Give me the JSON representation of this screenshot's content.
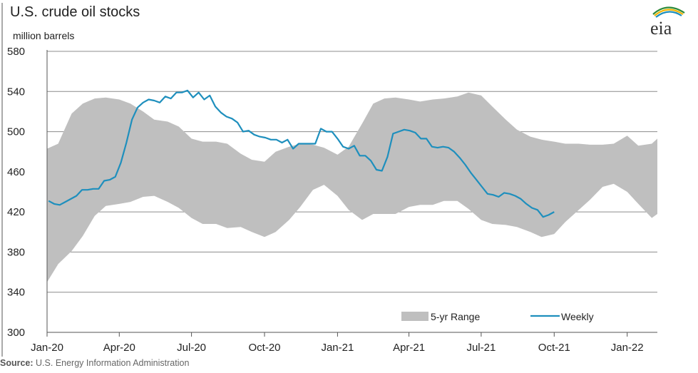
{
  "title": "U.S. crude oil stocks",
  "unit": "million barrels",
  "source_label": "Source:",
  "source_text": "U.S. Energy Information Administration",
  "logo_text": "eia",
  "chart_data": {
    "type": "line",
    "title": "U.S. crude oil stocks",
    "ylabel": "million barrels",
    "ylim": [
      300,
      580
    ],
    "yticks": [
      300,
      340,
      380,
      420,
      460,
      500,
      540,
      580
    ],
    "xlim": [
      "2020-01-01",
      "2022-02-08"
    ],
    "xtick_dates": [
      "2020-01-01",
      "2020-04-01",
      "2020-07-01",
      "2020-10-01",
      "2021-01-01",
      "2021-04-01",
      "2021-07-01",
      "2021-10-01",
      "2022-01-01"
    ],
    "xtick_labels": [
      "Jan-20",
      "Apr-20",
      "Jul-20",
      "Oct-20",
      "Jan-21",
      "Apr-21",
      "Jul-21",
      "Oct-21",
      "Jan-22"
    ],
    "grid": true,
    "legend_position": "bottom-right",
    "series": [
      {
        "name": "5-yr Range",
        "kind": "range-band",
        "color": "#bfbfbf",
        "x": [
          "2020-01-01",
          "2020-01-15",
          "2020-02-01",
          "2020-02-15",
          "2020-03-01",
          "2020-03-15",
          "2020-04-01",
          "2020-04-15",
          "2020-05-01",
          "2020-05-15",
          "2020-06-01",
          "2020-06-15",
          "2020-07-01",
          "2020-07-15",
          "2020-08-01",
          "2020-08-15",
          "2020-09-01",
          "2020-09-15",
          "2020-10-01",
          "2020-10-15",
          "2020-11-01",
          "2020-11-15",
          "2020-12-01",
          "2020-12-15",
          "2021-01-01",
          "2021-01-15",
          "2021-02-01",
          "2021-02-15",
          "2021-03-01",
          "2021-03-15",
          "2021-04-01",
          "2021-04-15",
          "2021-05-01",
          "2021-05-15",
          "2021-06-01",
          "2021-06-15",
          "2021-07-01",
          "2021-07-15",
          "2021-08-01",
          "2021-08-15",
          "2021-09-01",
          "2021-09-15",
          "2021-10-01",
          "2021-10-15",
          "2021-11-01",
          "2021-11-15",
          "2021-12-01",
          "2021-12-15",
          "2022-01-01",
          "2022-01-15",
          "2022-02-01",
          "2022-02-08"
        ],
        "low": [
          350,
          368,
          381,
          396,
          416,
          426,
          428,
          430,
          435,
          436,
          430,
          424,
          414,
          408,
          408,
          404,
          405,
          400,
          395,
          400,
          412,
          425,
          442,
          447,
          436,
          422,
          412,
          418,
          418,
          418,
          425,
          427,
          427,
          431,
          431,
          423,
          412,
          408,
          407,
          405,
          400,
          395,
          398,
          410,
          422,
          432,
          445,
          448,
          440,
          428,
          414,
          418
        ],
        "high": [
          483,
          488,
          518,
          528,
          533,
          534,
          532,
          528,
          520,
          512,
          510,
          505,
          493,
          490,
          490,
          488,
          478,
          472,
          470,
          480,
          485,
          488,
          487,
          484,
          477,
          485,
          508,
          528,
          533,
          534,
          532,
          530,
          532,
          533,
          535,
          539,
          536,
          525,
          512,
          502,
          495,
          492,
          490,
          488,
          488,
          487,
          487,
          488,
          496,
          486,
          488,
          493
        ]
      },
      {
        "name": "Weekly",
        "kind": "line",
        "color": "#1e8fbd",
        "x": [
          "2020-01-03",
          "2020-01-10",
          "2020-01-17",
          "2020-01-24",
          "2020-01-31",
          "2020-02-07",
          "2020-02-14",
          "2020-02-21",
          "2020-02-28",
          "2020-03-06",
          "2020-03-13",
          "2020-03-20",
          "2020-03-27",
          "2020-04-03",
          "2020-04-10",
          "2020-04-17",
          "2020-04-24",
          "2020-05-01",
          "2020-05-08",
          "2020-05-15",
          "2020-05-22",
          "2020-05-29",
          "2020-06-05",
          "2020-06-12",
          "2020-06-19",
          "2020-06-26",
          "2020-07-03",
          "2020-07-10",
          "2020-07-17",
          "2020-07-24",
          "2020-07-31",
          "2020-08-07",
          "2020-08-14",
          "2020-08-21",
          "2020-08-28",
          "2020-09-04",
          "2020-09-11",
          "2020-09-18",
          "2020-09-25",
          "2020-10-02",
          "2020-10-09",
          "2020-10-16",
          "2020-10-23",
          "2020-10-30",
          "2020-11-06",
          "2020-11-13",
          "2020-11-20",
          "2020-11-27",
          "2020-12-04",
          "2020-12-11",
          "2020-12-18",
          "2020-12-25",
          "2021-01-01",
          "2021-01-08",
          "2021-01-15",
          "2021-01-22",
          "2021-01-29",
          "2021-02-05",
          "2021-02-12",
          "2021-02-19",
          "2021-02-26",
          "2021-03-05",
          "2021-03-12",
          "2021-03-19",
          "2021-03-26",
          "2021-04-02",
          "2021-04-09",
          "2021-04-16",
          "2021-04-23",
          "2021-04-30",
          "2021-05-07",
          "2021-05-14",
          "2021-05-21",
          "2021-05-28",
          "2021-06-04",
          "2021-06-11",
          "2021-06-18",
          "2021-06-25",
          "2021-07-02",
          "2021-07-09",
          "2021-07-16",
          "2021-07-23",
          "2021-07-30",
          "2021-08-06",
          "2021-08-13",
          "2021-08-20",
          "2021-08-27",
          "2021-09-03",
          "2021-09-10",
          "2021-09-17",
          "2021-09-24",
          "2021-10-01"
        ],
        "values": [
          431,
          428,
          427,
          430,
          433,
          436,
          442,
          442,
          443,
          443,
          451,
          452,
          455,
          469,
          489,
          512,
          524,
          529,
          532,
          531,
          529,
          535,
          533,
          539,
          539,
          541,
          534,
          539,
          532,
          536,
          525,
          519,
          515,
          513,
          509,
          500,
          501,
          497,
          495,
          494,
          492,
          492,
          489,
          492,
          483,
          488,
          488,
          488,
          488,
          503,
          500,
          500,
          493,
          485,
          483,
          486,
          476,
          476,
          471,
          462,
          461,
          475,
          498,
          500,
          502,
          501,
          499,
          493,
          493,
          485,
          484,
          485,
          484,
          480,
          474,
          467,
          459,
          452,
          445,
          438,
          437,
          435,
          439,
          438,
          436,
          433,
          428,
          424,
          422,
          415,
          417,
          420
        ]
      }
    ]
  }
}
